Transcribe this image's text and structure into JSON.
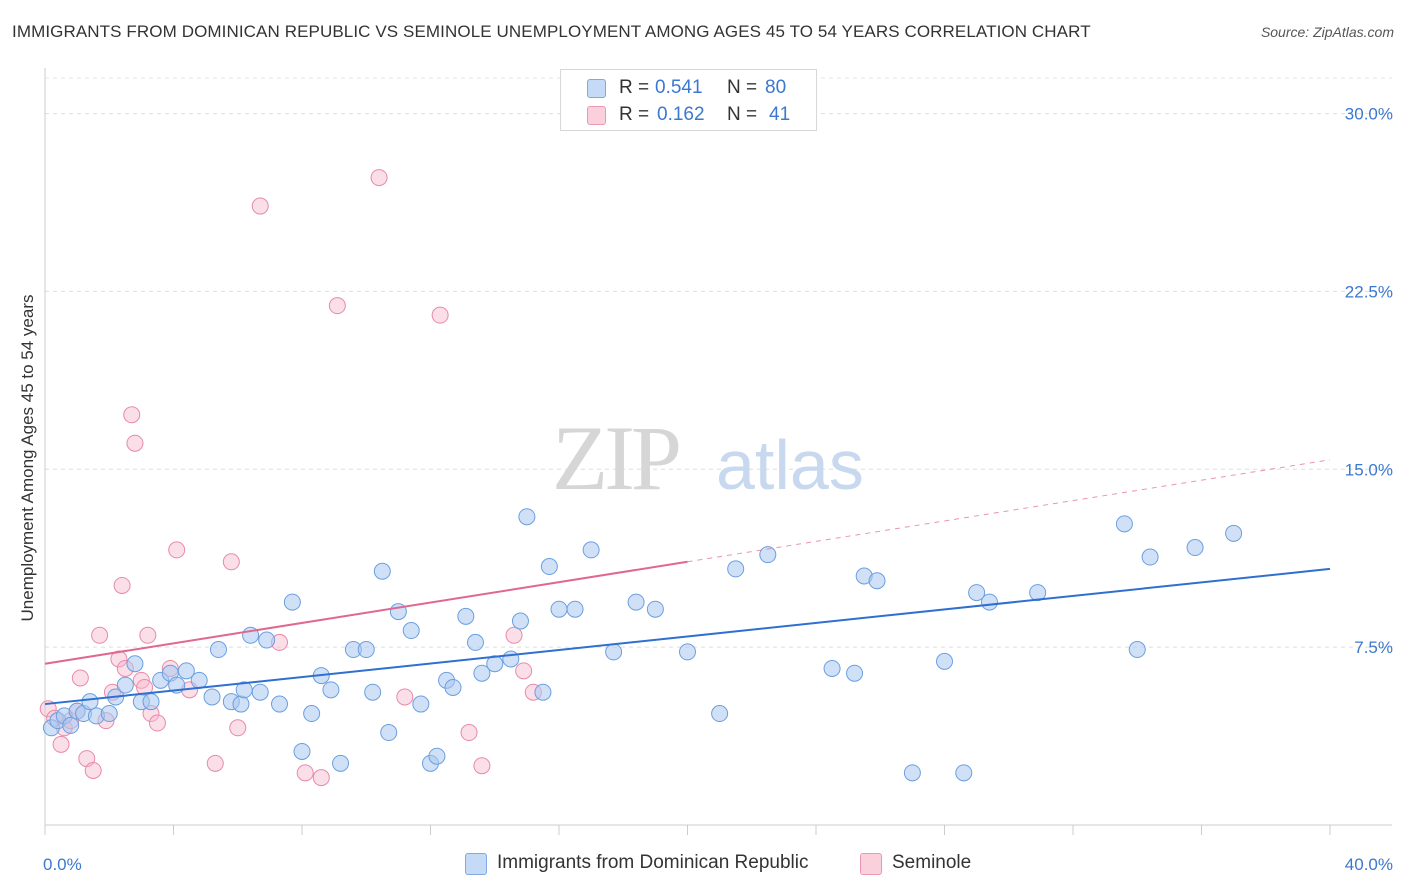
{
  "title": "IMMIGRANTS FROM DOMINICAN REPUBLIC VS SEMINOLE UNEMPLOYMENT AMONG AGES 45 TO 54 YEARS CORRELATION CHART",
  "source": "Source: ZipAtlas.com",
  "watermark": {
    "zip": "ZIP",
    "atlas": "atlas"
  },
  "legend_top": [
    {
      "r_label": "R =",
      "r_value": "0.541",
      "n_label": "N =",
      "n_value": "80",
      "color": "#a9c8f0"
    },
    {
      "r_label": "R =",
      "r_value": "0.162",
      "n_label": "N =",
      "n_value": "41",
      "color": "#f7b8cc"
    }
  ],
  "legend_bottom": [
    {
      "label": "Immigrants from Dominican Republic",
      "color": "#a9c8f0"
    },
    {
      "label": "Seminole",
      "color": "#f7b8cc"
    }
  ],
  "chart_data": {
    "type": "scatter",
    "ylabel": "Unemployment Among Ages 45 to 54 years",
    "xlim": [
      0,
      40
    ],
    "ylim": [
      0,
      31.5
    ],
    "x_tick_labels": [
      "0.0%",
      "40.0%"
    ],
    "y_ticks": [
      7.5,
      15.0,
      22.5,
      30.0
    ],
    "y_tick_labels": [
      "7.5%",
      "15.0%",
      "22.5%",
      "30.0%"
    ],
    "grid": true,
    "legend_position": "top-center",
    "colors": {
      "blue_fill": "#a9c8f0",
      "blue_stroke": "#6a9fe0",
      "blue_line": "#2f6fd0",
      "pink_fill": "#f7b8cc",
      "pink_stroke": "#e88aa8",
      "pink_line": "#e06890",
      "tick_label": "#3b78d0"
    },
    "series": [
      {
        "name": "Immigrants from Dominican Republic",
        "trend": {
          "x0": 0,
          "y0": 5.1,
          "x1": 40,
          "y1": 10.8
        },
        "points": [
          [
            0.2,
            4.1
          ],
          [
            0.4,
            4.4
          ],
          [
            0.6,
            4.6
          ],
          [
            0.8,
            4.2
          ],
          [
            1.0,
            4.8
          ],
          [
            1.2,
            4.7
          ],
          [
            1.4,
            5.2
          ],
          [
            1.6,
            4.6
          ],
          [
            2.0,
            4.7
          ],
          [
            2.2,
            5.4
          ],
          [
            2.5,
            5.9
          ],
          [
            2.8,
            6.8
          ],
          [
            3.0,
            5.2
          ],
          [
            3.3,
            5.2
          ],
          [
            3.6,
            6.1
          ],
          [
            3.9,
            6.4
          ],
          [
            4.1,
            5.9
          ],
          [
            4.4,
            6.5
          ],
          [
            4.8,
            6.1
          ],
          [
            5.2,
            5.4
          ],
          [
            5.4,
            7.4
          ],
          [
            5.8,
            5.2
          ],
          [
            6.1,
            5.1
          ],
          [
            6.2,
            5.7
          ],
          [
            6.4,
            8.0
          ],
          [
            6.7,
            5.6
          ],
          [
            6.9,
            7.8
          ],
          [
            7.3,
            5.1
          ],
          [
            7.7,
            9.4
          ],
          [
            8.0,
            3.1
          ],
          [
            8.3,
            4.7
          ],
          [
            8.6,
            6.3
          ],
          [
            8.9,
            5.7
          ],
          [
            9.2,
            2.6
          ],
          [
            9.6,
            7.4
          ],
          [
            10.0,
            7.4
          ],
          [
            10.2,
            5.6
          ],
          [
            10.5,
            10.7
          ],
          [
            10.7,
            3.9
          ],
          [
            11.0,
            9.0
          ],
          [
            11.4,
            8.2
          ],
          [
            11.7,
            5.1
          ],
          [
            12.0,
            2.6
          ],
          [
            12.2,
            2.9
          ],
          [
            12.5,
            6.1
          ],
          [
            12.7,
            5.8
          ],
          [
            13.1,
            8.8
          ],
          [
            13.4,
            7.7
          ],
          [
            13.6,
            6.4
          ],
          [
            14.0,
            6.8
          ],
          [
            14.5,
            7.0
          ],
          [
            14.8,
            8.6
          ],
          [
            15.0,
            13.0
          ],
          [
            15.5,
            5.6
          ],
          [
            15.7,
            10.9
          ],
          [
            16.0,
            9.1
          ],
          [
            16.5,
            9.1
          ],
          [
            17.0,
            11.6
          ],
          [
            17.7,
            7.3
          ],
          [
            18.4,
            9.4
          ],
          [
            19.0,
            9.1
          ],
          [
            20.0,
            7.3
          ],
          [
            21.0,
            4.7
          ],
          [
            21.5,
            10.8
          ],
          [
            22.5,
            11.4
          ],
          [
            24.5,
            6.6
          ],
          [
            25.2,
            6.4
          ],
          [
            25.5,
            10.5
          ],
          [
            25.9,
            10.3
          ],
          [
            27.0,
            2.2
          ],
          [
            28.0,
            6.9
          ],
          [
            28.6,
            2.2
          ],
          [
            29.0,
            9.8
          ],
          [
            29.4,
            9.4
          ],
          [
            30.9,
            9.8
          ],
          [
            33.6,
            12.7
          ],
          [
            34.0,
            7.4
          ],
          [
            34.4,
            11.3
          ],
          [
            35.8,
            11.7
          ],
          [
            37.0,
            12.3
          ]
        ]
      },
      {
        "name": "Seminole",
        "trend": {
          "x0": 0,
          "y0": 6.8,
          "x1": 20,
          "y1": 11.1,
          "dash_to_x": 40,
          "dash_to_y": 15.4
        },
        "points": [
          [
            0.1,
            4.9
          ],
          [
            0.3,
            4.5
          ],
          [
            0.5,
            3.4
          ],
          [
            0.6,
            4.1
          ],
          [
            0.8,
            4.4
          ],
          [
            1.0,
            4.8
          ],
          [
            1.1,
            6.2
          ],
          [
            1.3,
            2.8
          ],
          [
            1.5,
            2.3
          ],
          [
            1.7,
            8.0
          ],
          [
            1.9,
            4.4
          ],
          [
            2.1,
            5.6
          ],
          [
            2.3,
            7.0
          ],
          [
            2.4,
            10.1
          ],
          [
            2.5,
            6.6
          ],
          [
            2.7,
            17.3
          ],
          [
            2.8,
            16.1
          ],
          [
            3.0,
            6.1
          ],
          [
            3.1,
            5.8
          ],
          [
            3.2,
            8.0
          ],
          [
            3.3,
            4.7
          ],
          [
            3.5,
            4.3
          ],
          [
            3.9,
            6.6
          ],
          [
            4.1,
            11.6
          ],
          [
            4.5,
            5.7
          ],
          [
            5.3,
            2.6
          ],
          [
            5.8,
            11.1
          ],
          [
            6.0,
            4.1
          ],
          [
            6.7,
            26.1
          ],
          [
            7.3,
            7.7
          ],
          [
            8.1,
            2.2
          ],
          [
            8.6,
            2.0
          ],
          [
            9.1,
            21.9
          ],
          [
            10.4,
            27.3
          ],
          [
            11.2,
            5.4
          ],
          [
            12.3,
            21.5
          ],
          [
            13.2,
            3.9
          ],
          [
            13.6,
            2.5
          ],
          [
            14.6,
            8.0
          ],
          [
            14.9,
            6.5
          ],
          [
            15.2,
            5.6
          ]
        ]
      }
    ]
  }
}
